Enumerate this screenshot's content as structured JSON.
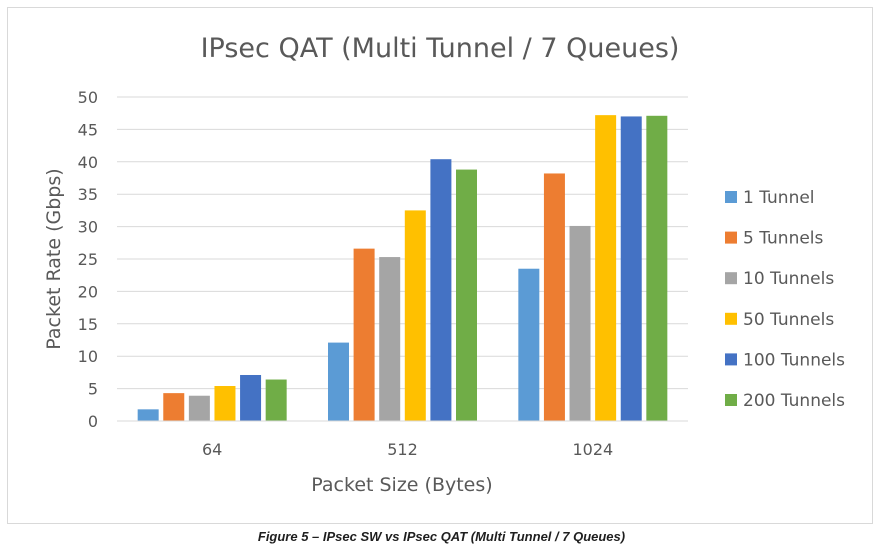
{
  "chart_data": {
    "type": "bar",
    "title": "IPsec QAT (Multi Tunnel / 7 Queues)",
    "xlabel": "Packet Size (Bytes)",
    "ylabel": "Packet Rate (Gbps)",
    "categories": [
      "64",
      "512",
      "1024"
    ],
    "ylim": [
      0,
      50
    ],
    "yticks": [
      "0",
      "5",
      "10",
      "15",
      "20",
      "25",
      "30",
      "35",
      "40",
      "45",
      "50"
    ],
    "grid": true,
    "legend": "right",
    "series": [
      {
        "name": "1 Tunnel",
        "color": "#5b9bd5",
        "values": [
          1.8,
          12.1,
          23.5
        ]
      },
      {
        "name": "5 Tunnels",
        "color": "#ed7d31",
        "values": [
          4.3,
          26.6,
          38.2
        ]
      },
      {
        "name": "10 Tunnels",
        "color": "#a5a5a5",
        "values": [
          3.9,
          25.3,
          30.1
        ]
      },
      {
        "name": "50 Tunnels",
        "color": "#ffc000",
        "values": [
          5.4,
          32.5,
          47.2
        ]
      },
      {
        "name": "100 Tunnels",
        "color": "#4472c4",
        "values": [
          7.1,
          40.4,
          47.0
        ]
      },
      {
        "name": "200 Tunnels",
        "color": "#70ad47",
        "values": [
          6.4,
          38.8,
          47.1
        ]
      }
    ]
  },
  "caption": "Figure 5 – IPsec SW vs IPsec QAT (Multi Tunnel / 7 Queues)"
}
